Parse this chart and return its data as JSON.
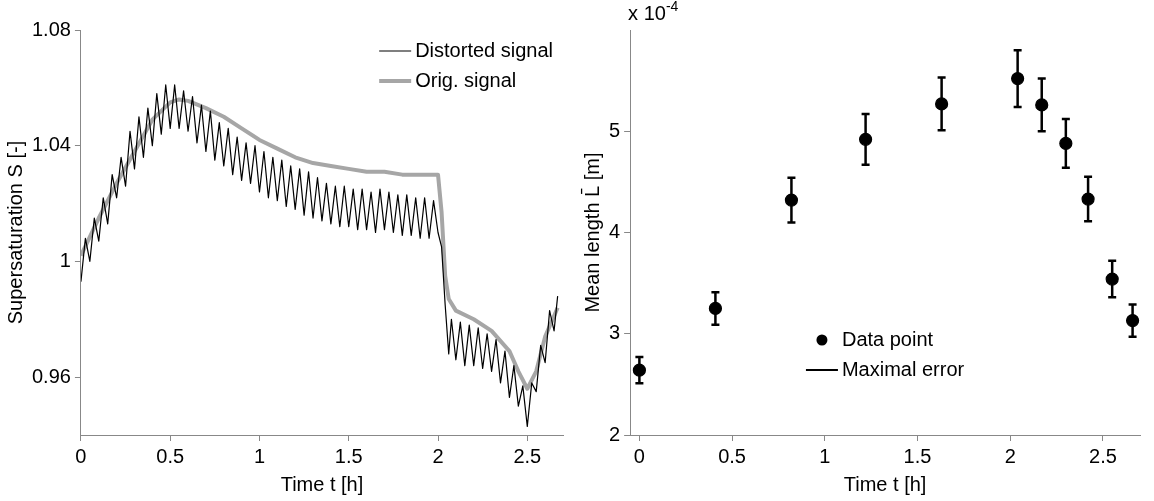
{
  "chart_data": [
    {
      "type": "line",
      "xlabel": "Time t [h]",
      "ylabel": "Supersaturation S [-]",
      "xlim": [
        0,
        2.7
      ],
      "xticks": [
        0,
        0.5,
        1,
        1.5,
        2,
        2.5
      ],
      "ylim": [
        0.94,
        1.08
      ],
      "yticks": [
        0.96,
        1,
        1.04,
        1.08
      ],
      "grid": false,
      "legend": "top right",
      "marker": "none",
      "series": [
        {
          "name": "Distorted signal",
          "color": "#000000",
          "x": [
            0,
            0.025,
            0.05,
            0.075,
            0.1,
            0.125,
            0.15,
            0.175,
            0.2,
            0.225,
            0.25,
            0.275,
            0.3,
            0.325,
            0.35,
            0.375,
            0.4,
            0.425,
            0.45,
            0.475,
            0.5,
            0.525,
            0.55,
            0.575,
            0.6,
            0.625,
            0.65,
            0.675,
            0.7,
            0.725,
            0.75,
            0.775,
            0.8,
            0.825,
            0.85,
            0.875,
            0.9,
            0.925,
            0.95,
            0.975,
            1,
            1.025,
            1.05,
            1.075,
            1.1,
            1.125,
            1.15,
            1.175,
            1.2,
            1.225,
            1.25,
            1.275,
            1.3,
            1.325,
            1.35,
            1.375,
            1.4,
            1.425,
            1.45,
            1.475,
            1.5,
            1.525,
            1.55,
            1.575,
            1.6,
            1.625,
            1.65,
            1.675,
            1.7,
            1.725,
            1.75,
            1.775,
            1.8,
            1.825,
            1.85,
            1.875,
            1.9,
            1.925,
            1.95,
            1.975,
            2,
            2.02,
            2.04,
            2.06,
            2.075,
            2.1,
            2.125,
            2.15,
            2.175,
            2.2,
            2.225,
            2.25,
            2.275,
            2.3,
            2.325,
            2.35,
            2.375,
            2.4,
            2.425,
            2.45,
            2.475,
            2.5,
            2.525,
            2.55,
            2.575,
            2.6,
            2.625,
            2.65,
            2.67
          ],
          "values": [
            0.993,
            1.008,
            1.0,
            1.015,
            1.007,
            1.022,
            1.013,
            1.03,
            1.022,
            1.036,
            1.026,
            1.045,
            1.032,
            1.05,
            1.036,
            1.053,
            1.04,
            1.058,
            1.044,
            1.061,
            1.046,
            1.061,
            1.046,
            1.059,
            1.045,
            1.057,
            1.041,
            1.054,
            1.038,
            1.052,
            1.035,
            1.048,
            1.033,
            1.046,
            1.03,
            1.043,
            1.028,
            1.041,
            1.027,
            1.04,
            1.024,
            1.038,
            1.022,
            1.036,
            1.021,
            1.035,
            1.019,
            1.033,
            1.018,
            1.032,
            1.016,
            1.031,
            1.015,
            1.029,
            1.014,
            1.027,
            1.013,
            1.026,
            1.012,
            1.026,
            1.012,
            1.025,
            1.011,
            1.025,
            1.011,
            1.024,
            1.01,
            1.025,
            1.011,
            1.024,
            1.01,
            1.023,
            1.009,
            1.023,
            1.009,
            1.022,
            1.008,
            1.022,
            1.008,
            1.021,
            1.01,
            1.005,
            0.985,
            0.968,
            0.98,
            0.966,
            0.979,
            0.964,
            0.978,
            0.964,
            0.977,
            0.963,
            0.975,
            0.962,
            0.973,
            0.958,
            0.969,
            0.953,
            0.964,
            0.95,
            0.957,
            0.943,
            0.958,
            0.955,
            0.971,
            0.965,
            0.983,
            0.976,
            0.988
          ]
        },
        {
          "name": "Orig. signal",
          "color": "#a6a6a6",
          "x": [
            0,
            0.1,
            0.2,
            0.3,
            0.4,
            0.5,
            0.55,
            0.6,
            0.7,
            0.8,
            0.9,
            1,
            1.1,
            1.2,
            1.3,
            1.4,
            1.5,
            1.6,
            1.7,
            1.8,
            1.9,
            2,
            2.02,
            2.04,
            2.06,
            2.1,
            2.2,
            2.3,
            2.4,
            2.45,
            2.5,
            2.55,
            2.6,
            2.67
          ],
          "values": [
            1.002,
            1.015,
            1.027,
            1.038,
            1.049,
            1.055,
            1.056,
            1.0555,
            1.053,
            1.05,
            1.046,
            1.042,
            1.039,
            1.036,
            1.034,
            1.033,
            1.032,
            1.031,
            1.031,
            1.03,
            1.03,
            1.03,
            1.017,
            0.995,
            0.987,
            0.983,
            0.98,
            0.976,
            0.969,
            0.962,
            0.956,
            0.962,
            0.974,
            0.984
          ]
        }
      ]
    },
    {
      "type": "scatter",
      "xlabel": "Time t [h]",
      "ylabel": "Mean length L̄ [m]",
      "xlim": [
        -0.05,
        2.7
      ],
      "xticks": [
        0,
        0.5,
        1,
        1.5,
        2,
        2.5
      ],
      "ylim": [
        2,
        6
      ],
      "yticks": [
        2,
        3,
        4,
        5
      ],
      "grid": false,
      "legend": "bottom",
      "marker": "circle",
      "annotations": [
        "x 10$^{-4}$",
        "Maximal error"
      ],
      "series": [
        {
          "name": "Data point",
          "color": "#000000",
          "x": [
            0,
            0.41,
            0.82,
            1.22,
            1.63,
            2.04,
            2.17,
            2.3,
            2.42,
            2.55,
            2.66
          ],
          "values": [
            2.64,
            3.25,
            4.32,
            4.92,
            5.27,
            5.52,
            5.26,
            4.88,
            4.33,
            3.54,
            3.13
          ],
          "errors": [
            0.13,
            0.16,
            0.22,
            0.25,
            0.26,
            0.28,
            0.26,
            0.24,
            0.22,
            0.18,
            0.16
          ]
        }
      ]
    }
  ]
}
